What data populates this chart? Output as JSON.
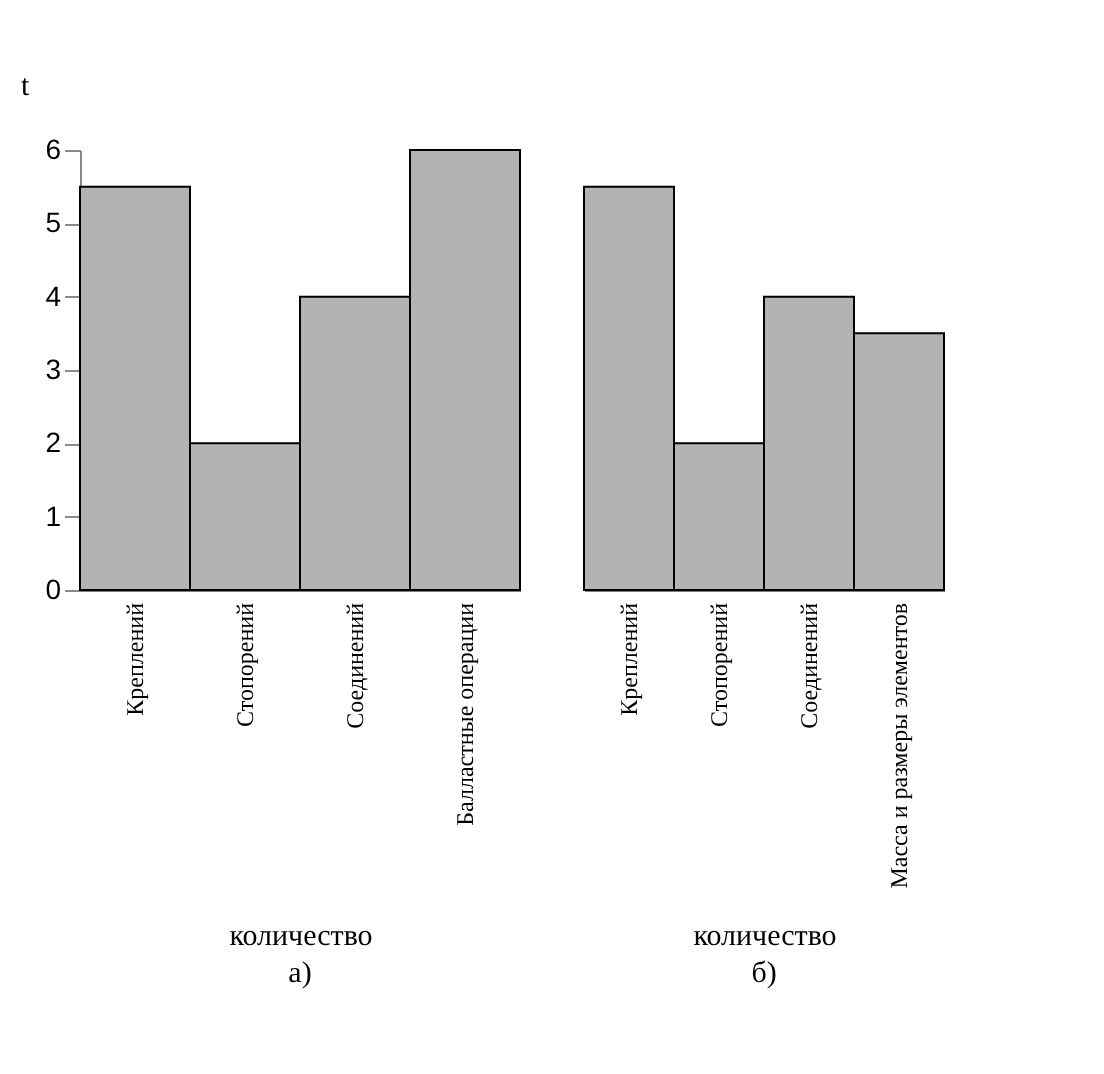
{
  "chart_data": [
    {
      "type": "bar",
      "title": "а)",
      "xlabel": "количество",
      "ylabel": "t",
      "categories": [
        "Креплений",
        "Стопорений",
        "Соединений",
        "Балластные операции"
      ],
      "values": [
        5.5,
        2,
        4,
        6
      ],
      "color": "#b3b3b3",
      "ylim": [
        0,
        6
      ],
      "yticks": [
        0,
        1,
        2,
        3,
        4,
        5,
        6
      ]
    },
    {
      "type": "bar",
      "title": "б)",
      "xlabel": "количество",
      "categories": [
        "Креплений",
        "Стопорений",
        "Соединений",
        "Масса и размеры элементов"
      ],
      "values": [
        5.5,
        2,
        4,
        3.5
      ],
      "color": "#b3b3b3",
      "ylim": [
        0,
        6
      ],
      "yticks": [
        0,
        1,
        2,
        3,
        4,
        5,
        6
      ],
      "tick_labels": "x"
    }
  ]
}
